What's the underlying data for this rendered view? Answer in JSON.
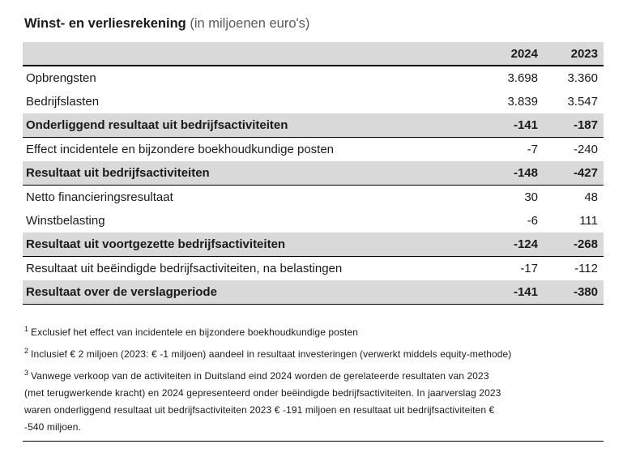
{
  "title": {
    "main": "Winst- en verliesrekening",
    "unit": "(in miljoenen euro's)"
  },
  "table": {
    "columns": [
      "2024",
      "2023"
    ],
    "rows": [
      {
        "label": "Opbrengsten",
        "y2024": "3.698",
        "y2023": "3.360"
      },
      {
        "label": "Bedrijfslasten",
        "y2024": "3.839",
        "y2023": "3.547"
      },
      {
        "label": "Onderliggend resultaat uit bedrijfsactiviteiten",
        "y2024": "-141",
        "y2023": "-187"
      },
      {
        "label": "Effect incidentele en bijzondere boekhoudkundige posten",
        "y2024": "-7",
        "y2023": "-240"
      },
      {
        "label": "Resultaat uit bedrijfsactiviteiten",
        "y2024": "-148",
        "y2023": "-427"
      },
      {
        "label": "Netto financieringsresultaat",
        "y2024": "30",
        "y2023": "48"
      },
      {
        "label": "Winstbelasting",
        "y2024": "-6",
        "y2023": "111"
      },
      {
        "label": "Resultaat uit voortgezette bedrijfsactiviteiten",
        "y2024": "-124",
        "y2023": "-268"
      },
      {
        "label": "Resultaat uit beëindigde bedrijfsactiviteiten, na belastingen",
        "y2024": "-17",
        "y2023": "-112"
      },
      {
        "label": "Resultaat over de verslagperiode",
        "y2024": "-141",
        "y2023": "-380"
      }
    ]
  },
  "footnotes": [
    {
      "marker": "1",
      "text": "Exclusief het effect van incidentele en bijzondere boekhoudkundige posten"
    },
    {
      "marker": "2",
      "text": "Inclusief € 2 miljoen (2023: € -1 miljoen) aandeel in resultaat investeringen (verwerkt middels equity-methode)"
    },
    {
      "marker": "3",
      "text": "Vanwege verkoop van de activiteiten in Duitsland eind 2024 worden de gerelateerde resultaten van 2023 (met terugwerkende kracht) en 2024 gepresenteerd onder beëindigde bedrijfsactiviteiten. In jaarverslag 2023 waren onderliggend resultaat uit bedrijfsactiviteiten 2023 € -191 miljoen en resultaat uit bedrijfsactiviteiten € -540 miljoen."
    }
  ],
  "colors": {
    "row_highlight": "#d9d9d9",
    "rule": "#000000",
    "muted_text": "#595959"
  }
}
